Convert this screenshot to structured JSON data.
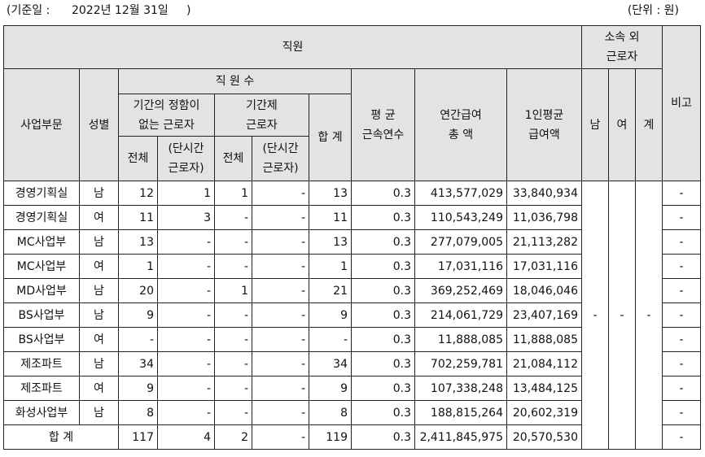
{
  "meta": {
    "base_date": "(기준일 :      2022년 12월 31일     )",
    "unit": "(단위 : 원)"
  },
  "headers": {
    "employees": "직원",
    "outside_workers": [
      "소속 외",
      "근로자"
    ],
    "remarks": "비고",
    "division": "사업부문",
    "gender": "성별",
    "headcount": "직 원 수",
    "permanent": [
      "기간의 정함이",
      "없는 근로자"
    ],
    "fixed_term": [
      "기간제",
      "근로자"
    ],
    "total_label": "전체",
    "part_time": [
      "(단시간",
      "근로자)"
    ],
    "sum": "합 계",
    "avg_tenure": [
      "평 균",
      "근속연수"
    ],
    "annual_pay": [
      "연간급여",
      "총 액"
    ],
    "avg_pay": [
      "1인평균",
      "급여액"
    ],
    "male": "남",
    "female": "여",
    "outside_total": "계"
  },
  "rows": [
    {
      "division": "경영기획실",
      "gender": "남",
      "perm_total": "12",
      "perm_part": "1",
      "fixed_total": "1",
      "fixed_part": "-",
      "sum": "13",
      "tenure": "0.3",
      "annual": "413,577,029",
      "avg": "33,840,934",
      "remark": "-"
    },
    {
      "division": "경영기획실",
      "gender": "여",
      "perm_total": "11",
      "perm_part": "3",
      "fixed_total": "-",
      "fixed_part": "-",
      "sum": "11",
      "tenure": "0.3",
      "annual": "110,543,249",
      "avg": "11,036,798",
      "remark": "-"
    },
    {
      "division": "MC사업부",
      "gender": "남",
      "perm_total": "13",
      "perm_part": "-",
      "fixed_total": "-",
      "fixed_part": "-",
      "sum": "13",
      "tenure": "0.3",
      "annual": "277,079,005",
      "avg": "21,113,282",
      "remark": "-"
    },
    {
      "division": "MC사업부",
      "gender": "여",
      "perm_total": "1",
      "perm_part": "-",
      "fixed_total": "-",
      "fixed_part": "-",
      "sum": "1",
      "tenure": "0.3",
      "annual": "17,031,116",
      "avg": "17,031,116",
      "remark": "-"
    },
    {
      "division": "MD사업부",
      "gender": "남",
      "perm_total": "20",
      "perm_part": "-",
      "fixed_total": "1",
      "fixed_part": "-",
      "sum": "21",
      "tenure": "0.3",
      "annual": "369,252,469",
      "avg": "18,046,046",
      "remark": "-"
    },
    {
      "division": "BS사업부",
      "gender": "남",
      "perm_total": "9",
      "perm_part": "-",
      "fixed_total": "-",
      "fixed_part": "-",
      "sum": "9",
      "tenure": "0.3",
      "annual": "214,061,729",
      "avg": "23,407,169",
      "remark": "-"
    },
    {
      "division": "BS사업부",
      "gender": "여",
      "perm_total": "-",
      "perm_part": "-",
      "fixed_total": "-",
      "fixed_part": "-",
      "sum": "-",
      "tenure": "0.3",
      "annual": "11,888,085",
      "avg": "11,888,085",
      "remark": "-"
    },
    {
      "division": "제조파트",
      "gender": "남",
      "perm_total": "34",
      "perm_part": "-",
      "fixed_total": "-",
      "fixed_part": "-",
      "sum": "34",
      "tenure": "0.3",
      "annual": "702,259,781",
      "avg": "21,084,112",
      "remark": "-"
    },
    {
      "division": "제조파트",
      "gender": "여",
      "perm_total": "9",
      "perm_part": "-",
      "fixed_total": "-",
      "fixed_part": "-",
      "sum": "9",
      "tenure": "0.3",
      "annual": "107,338,248",
      "avg": "13,484,125",
      "remark": "-"
    },
    {
      "division": "화성사업부",
      "gender": "남",
      "perm_total": "8",
      "perm_part": "-",
      "fixed_total": "-",
      "fixed_part": "-",
      "sum": "8",
      "tenure": "0.3",
      "annual": "188,815,264",
      "avg": "20,602,319",
      "remark": "-"
    }
  ],
  "outside": {
    "male": "-",
    "female": "-",
    "total": "-"
  },
  "total_row": {
    "label": "합 계",
    "perm_total": "117",
    "perm_part": "4",
    "fixed_total": "2",
    "fixed_part": "-",
    "sum": "119",
    "tenure": "0.3",
    "annual": "2,411,845,975",
    "avg": "20,570,530",
    "remark": "-"
  }
}
